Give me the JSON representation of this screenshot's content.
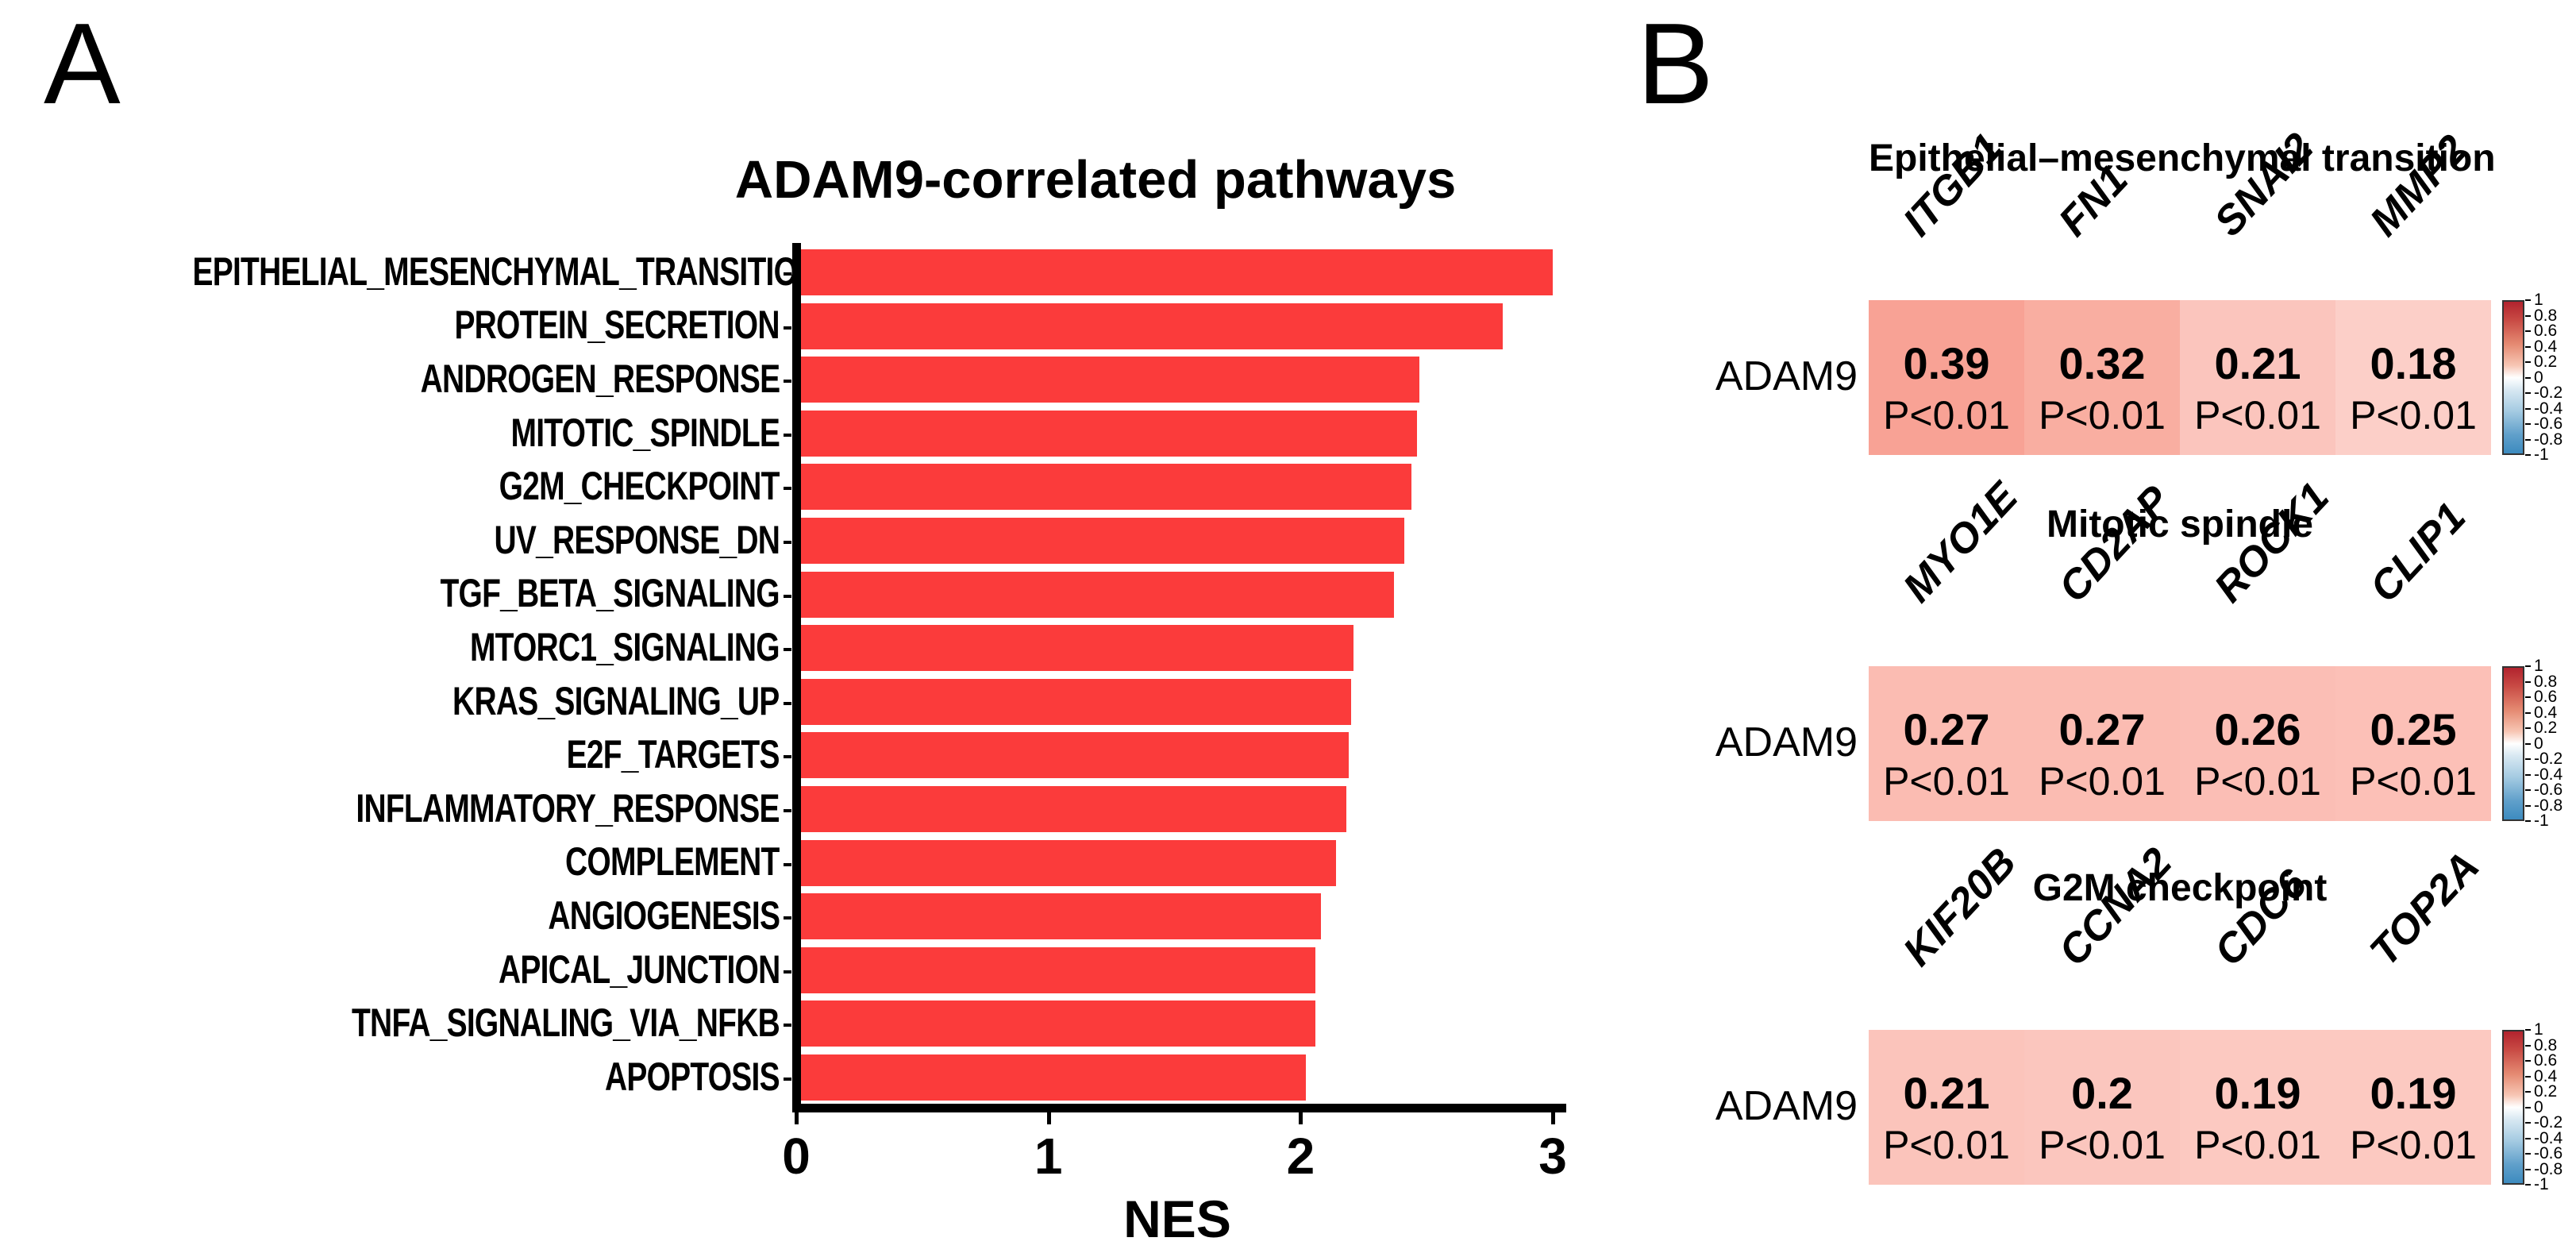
{
  "panel_a": {
    "panel_label": "A",
    "title": "ADAM9-correlated pathways",
    "x_axis_label": "NES",
    "bar_color": "#fb3b3b",
    "axis_color": "#000000",
    "x_tick_labels": [
      "0",
      "1",
      "2",
      "3"
    ],
    "x_tick_values": [
      0,
      1,
      2,
      3
    ],
    "pathways": [
      "EPITHELIAL_MESENCHYMAL_TRANSITION",
      "PROTEIN_SECRETION",
      "ANDROGEN_RESPONSE",
      "MITOTIC_SPINDLE",
      "G2M_CHECKPOINT",
      "UV_RESPONSE_DN",
      "TGF_BETA_SIGNALING",
      "MTORC1_SIGNALING",
      "KRAS_SIGNALING_UP",
      "E2F_TARGETS",
      "INFLAMMATORY_RESPONSE",
      "COMPLEMENT",
      "ANGIOGENESIS",
      "APICAL_JUNCTION",
      "TNFA_SIGNALING_VIA_NFKB",
      "APOPTOSIS"
    ],
    "nes_values": [
      3.0,
      2.8,
      2.47,
      2.46,
      2.44,
      2.41,
      2.37,
      2.21,
      2.2,
      2.19,
      2.18,
      2.14,
      2.08,
      2.06,
      2.06,
      2.02
    ]
  },
  "panel_b": {
    "panel_label": "B",
    "row_label": "ADAM9",
    "colorbar_tick_labels": [
      "1",
      "0.8",
      "0.6",
      "0.4",
      "0.2",
      "0",
      "-0.2",
      "-0.4",
      "-0.6",
      "-0.8",
      "-1"
    ],
    "colorbar_range": [
      1,
      -1
    ],
    "heatmaps": [
      {
        "title": "Epithelial–mesenchymal transition",
        "genes": [
          "ITGB1",
          "FN1",
          "SNAI2",
          "MMP2"
        ],
        "values": [
          "0.39",
          "0.32",
          "0.21",
          "0.18"
        ],
        "p_values": [
          "P<0.01",
          "P<0.01",
          "P<0.01",
          "P<0.01"
        ],
        "cell_colors": [
          "#f8a295",
          "#f9aea1",
          "#fbc5bd",
          "#fccfc8"
        ]
      },
      {
        "title": "Mitotic spindle",
        "genes": [
          "MYO1E",
          "CD2AP",
          "ROCK1",
          "CLIP1"
        ],
        "values": [
          "0.27",
          "0.27",
          "0.26",
          "0.25"
        ],
        "p_values": [
          "P<0.01",
          "P<0.01",
          "P<0.01",
          "P<0.01"
        ],
        "cell_colors": [
          "#fbbcb2",
          "#fbbcb2",
          "#fbbeb5",
          "#fcc0b7"
        ]
      },
      {
        "title": "G2M checkpoint",
        "genes": [
          "KIF20B",
          "CCNA2",
          "CDC6",
          "TOP2A"
        ],
        "values": [
          "0.21",
          "0.2",
          "0.19",
          "0.19"
        ],
        "p_values": [
          "P<0.01",
          "P<0.01",
          "P<0.01",
          "P<0.01"
        ],
        "cell_colors": [
          "#fbc4bb",
          "#fbc6be",
          "#fcc9c1",
          "#fcc9c1"
        ]
      }
    ]
  },
  "chart_data": [
    {
      "type": "bar",
      "orientation": "horizontal",
      "title": "ADAM9-correlated pathways",
      "xlabel": "NES",
      "ylabel": "",
      "xlim": [
        0,
        3
      ],
      "x_ticks": [
        0,
        1,
        2,
        3
      ],
      "grid": false,
      "bar_color": "#fb3b3b",
      "categories": [
        "EPITHELIAL_MESENCHYMAL_TRANSITION",
        "PROTEIN_SECRETION",
        "ANDROGEN_RESPONSE",
        "MITOTIC_SPINDLE",
        "G2M_CHECKPOINT",
        "UV_RESPONSE_DN",
        "TGF_BETA_SIGNALING",
        "MTORC1_SIGNALING",
        "KRAS_SIGNALING_UP",
        "E2F_TARGETS",
        "INFLAMMATORY_RESPONSE",
        "COMPLEMENT",
        "ANGIOGENESIS",
        "APICAL_JUNCTION",
        "TNFA_SIGNALING_VIA_NFKB",
        "APOPTOSIS"
      ],
      "values": [
        3.0,
        2.8,
        2.47,
        2.46,
        2.44,
        2.41,
        2.37,
        2.21,
        2.2,
        2.19,
        2.18,
        2.14,
        2.08,
        2.06,
        2.06,
        2.02
      ]
    },
    {
      "type": "heatmap",
      "title": "Epithelial–mesenchymal transition",
      "rows": [
        "ADAM9"
      ],
      "columns": [
        "ITGB1",
        "FN1",
        "SNAI2",
        "MMP2"
      ],
      "values": [
        [
          0.39,
          0.32,
          0.21,
          0.18
        ]
      ],
      "cell_annotations": [
        [
          "P<0.01",
          "P<0.01",
          "P<0.01",
          "P<0.01"
        ]
      ],
      "colorbar_range": [
        -1,
        1
      ],
      "colorbar_ticks": [
        1,
        0.8,
        0.6,
        0.4,
        0.2,
        0,
        -0.2,
        -0.4,
        -0.6,
        -0.8,
        -1
      ]
    },
    {
      "type": "heatmap",
      "title": "Mitotic spindle",
      "rows": [
        "ADAM9"
      ],
      "columns": [
        "MYO1E",
        "CD2AP",
        "ROCK1",
        "CLIP1"
      ],
      "values": [
        [
          0.27,
          0.27,
          0.26,
          0.25
        ]
      ],
      "cell_annotations": [
        [
          "P<0.01",
          "P<0.01",
          "P<0.01",
          "P<0.01"
        ]
      ],
      "colorbar_range": [
        -1,
        1
      ],
      "colorbar_ticks": [
        1,
        0.8,
        0.6,
        0.4,
        0.2,
        0,
        -0.2,
        -0.4,
        -0.6,
        -0.8,
        -1
      ]
    },
    {
      "type": "heatmap",
      "title": "G2M checkpoint",
      "rows": [
        "ADAM9"
      ],
      "columns": [
        "KIF20B",
        "CCNA2",
        "CDC6",
        "TOP2A"
      ],
      "values": [
        [
          0.21,
          0.2,
          0.19,
          0.19
        ]
      ],
      "cell_annotations": [
        [
          "P<0.01",
          "P<0.01",
          "P<0.01",
          "P<0.01"
        ]
      ],
      "colorbar_range": [
        -1,
        1
      ],
      "colorbar_ticks": [
        1,
        0.8,
        0.6,
        0.4,
        0.2,
        0,
        -0.2,
        -0.4,
        -0.6,
        -0.8,
        -1
      ]
    }
  ]
}
